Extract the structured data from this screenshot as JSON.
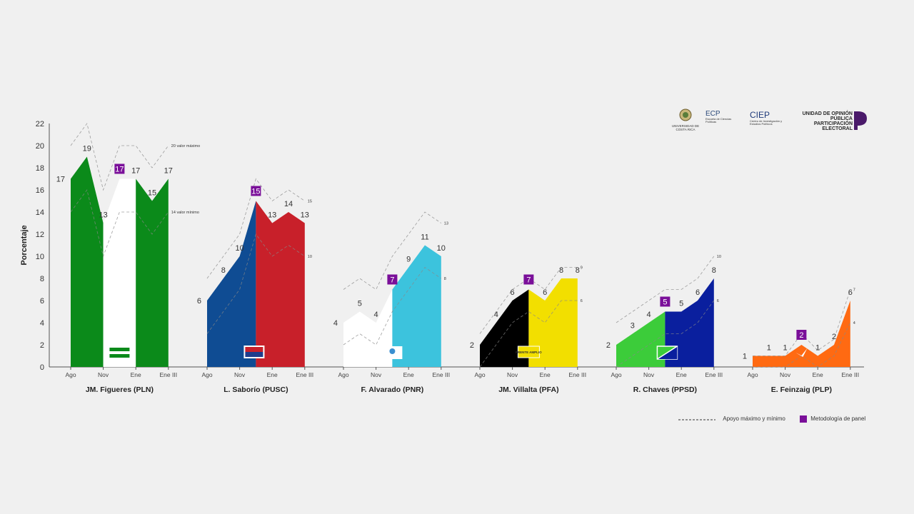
{
  "chart_data": {
    "type": "area",
    "ylabel": "Porcentaje",
    "ylim": [
      0,
      22
    ],
    "yticks": [
      0,
      2,
      4,
      6,
      8,
      10,
      12,
      14,
      16,
      18,
      20,
      22
    ],
    "months": [
      "Ago",
      "Nov",
      "Ene",
      "Ene III"
    ],
    "annotation_max": "20 valor máximo",
    "annotation_min": "14 valor mínimo",
    "candidates": [
      {
        "name": "JM. Figueres (PLN)",
        "values": [
          17,
          19,
          13,
          17,
          17,
          15,
          17
        ],
        "labels": [
          "17",
          "19",
          "13",
          "17",
          "17",
          "15",
          "17"
        ],
        "panel_index": 3,
        "max_line": [
          20,
          22,
          16,
          20,
          20,
          18,
          20
        ],
        "min_line": [
          14,
          16,
          10,
          14,
          14,
          12,
          14
        ],
        "end_max": "",
        "end_min": "",
        "colors": [
          "#0b8a1a",
          "#ffffff",
          "#0b8a1a"
        ],
        "emblem": "pln-flag"
      },
      {
        "name": "L. Saborío (PUSC)",
        "values": [
          6,
          8,
          10,
          15,
          13,
          14,
          13
        ],
        "labels": [
          "6",
          "8",
          "10",
          "15",
          "13",
          "14",
          "13"
        ],
        "panel_index": 3,
        "max_line": [
          8,
          10,
          12,
          17,
          15,
          16,
          15
        ],
        "min_line": [
          3,
          5,
          7,
          12,
          10,
          11,
          10
        ],
        "end_max": "15",
        "end_min": "10",
        "colors": [
          "#0f4c93",
          "#c8202a"
        ],
        "emblem": "pusc-flag"
      },
      {
        "name": "F. Alvarado (PNR)",
        "values": [
          4,
          5,
          4,
          7,
          9,
          11,
          10
        ],
        "labels": [
          "4",
          "5",
          "4",
          "7",
          "9",
          "11",
          "10"
        ],
        "panel_index": 3,
        "max_line": [
          7,
          8,
          7,
          10,
          12,
          14,
          13
        ],
        "min_line": [
          2,
          3,
          2,
          5,
          7,
          9,
          8
        ],
        "end_max": "13",
        "end_min": "8",
        "colors": [
          "#ffffff",
          "#3cc3dd"
        ],
        "emblem": "pnr-logo"
      },
      {
        "name": "JM. Villalta (PFA)",
        "values": [
          2,
          4,
          6,
          7,
          6,
          8,
          8
        ],
        "labels": [
          "2",
          "4",
          "6",
          "7",
          "6",
          "8",
          "8"
        ],
        "panel_index": 3,
        "max_line": [
          3,
          5,
          7,
          8,
          7,
          9,
          9
        ],
        "min_line": [
          0,
          2,
          4,
          5,
          4,
          6,
          6
        ],
        "end_max": "9",
        "end_min": "6",
        "colors": [
          "#000000",
          "#f2df00"
        ],
        "emblem": "pfa-logo",
        "emblem_text": "FRENTE AMPLIO"
      },
      {
        "name": "R. Chaves (PPSD)",
        "values": [
          2,
          3,
          4,
          5,
          5,
          6,
          8
        ],
        "labels": [
          "2",
          "3",
          "4",
          "5",
          "5",
          "6",
          "8"
        ],
        "panel_index": 3,
        "max_line": [
          4,
          5,
          6,
          7,
          7,
          8,
          10
        ],
        "min_line": [
          0,
          1,
          2,
          3,
          3,
          4,
          6
        ],
        "end_max": "10",
        "end_min": "6",
        "colors": [
          "#3ccc3a",
          "#0a1f9e"
        ],
        "emblem": "ppsd-flag"
      },
      {
        "name": "E. Feinzaig (PLP)",
        "values": [
          1,
          1,
          1,
          2,
          1,
          2,
          6
        ],
        "labels": [
          "1",
          "1",
          "1",
          "2",
          "1",
          "2",
          "6"
        ],
        "panel_index": 3,
        "max_line": [
          1,
          1,
          1,
          3,
          1.5,
          2.5,
          7
        ],
        "min_line": [
          0,
          0,
          0,
          1,
          0,
          1,
          4
        ],
        "end_max": "7",
        "end_min": "4",
        "colors": [
          "#ff6a12"
        ],
        "emblem": "plp-bird"
      }
    ],
    "legend": {
      "range_label": "Apoyo máximo y mínimo",
      "panel_label": "Metodología de panel",
      "panel_color": "#7a0f99"
    }
  },
  "logos": {
    "ucr": "UNIVERSIDAD DE COSTA RICA",
    "ecp": "ECP",
    "ecp_sub": "Escuela de Ciencias Políticas",
    "ciep": "CIEP",
    "ciep_sub": "Centro de Investigación y Estudios Políticos",
    "uop_line1": "UNIDAD DE OPINIÓN PÚBLICA",
    "uop_line2": "PARTICIPACIÓN ELECTORAL"
  }
}
